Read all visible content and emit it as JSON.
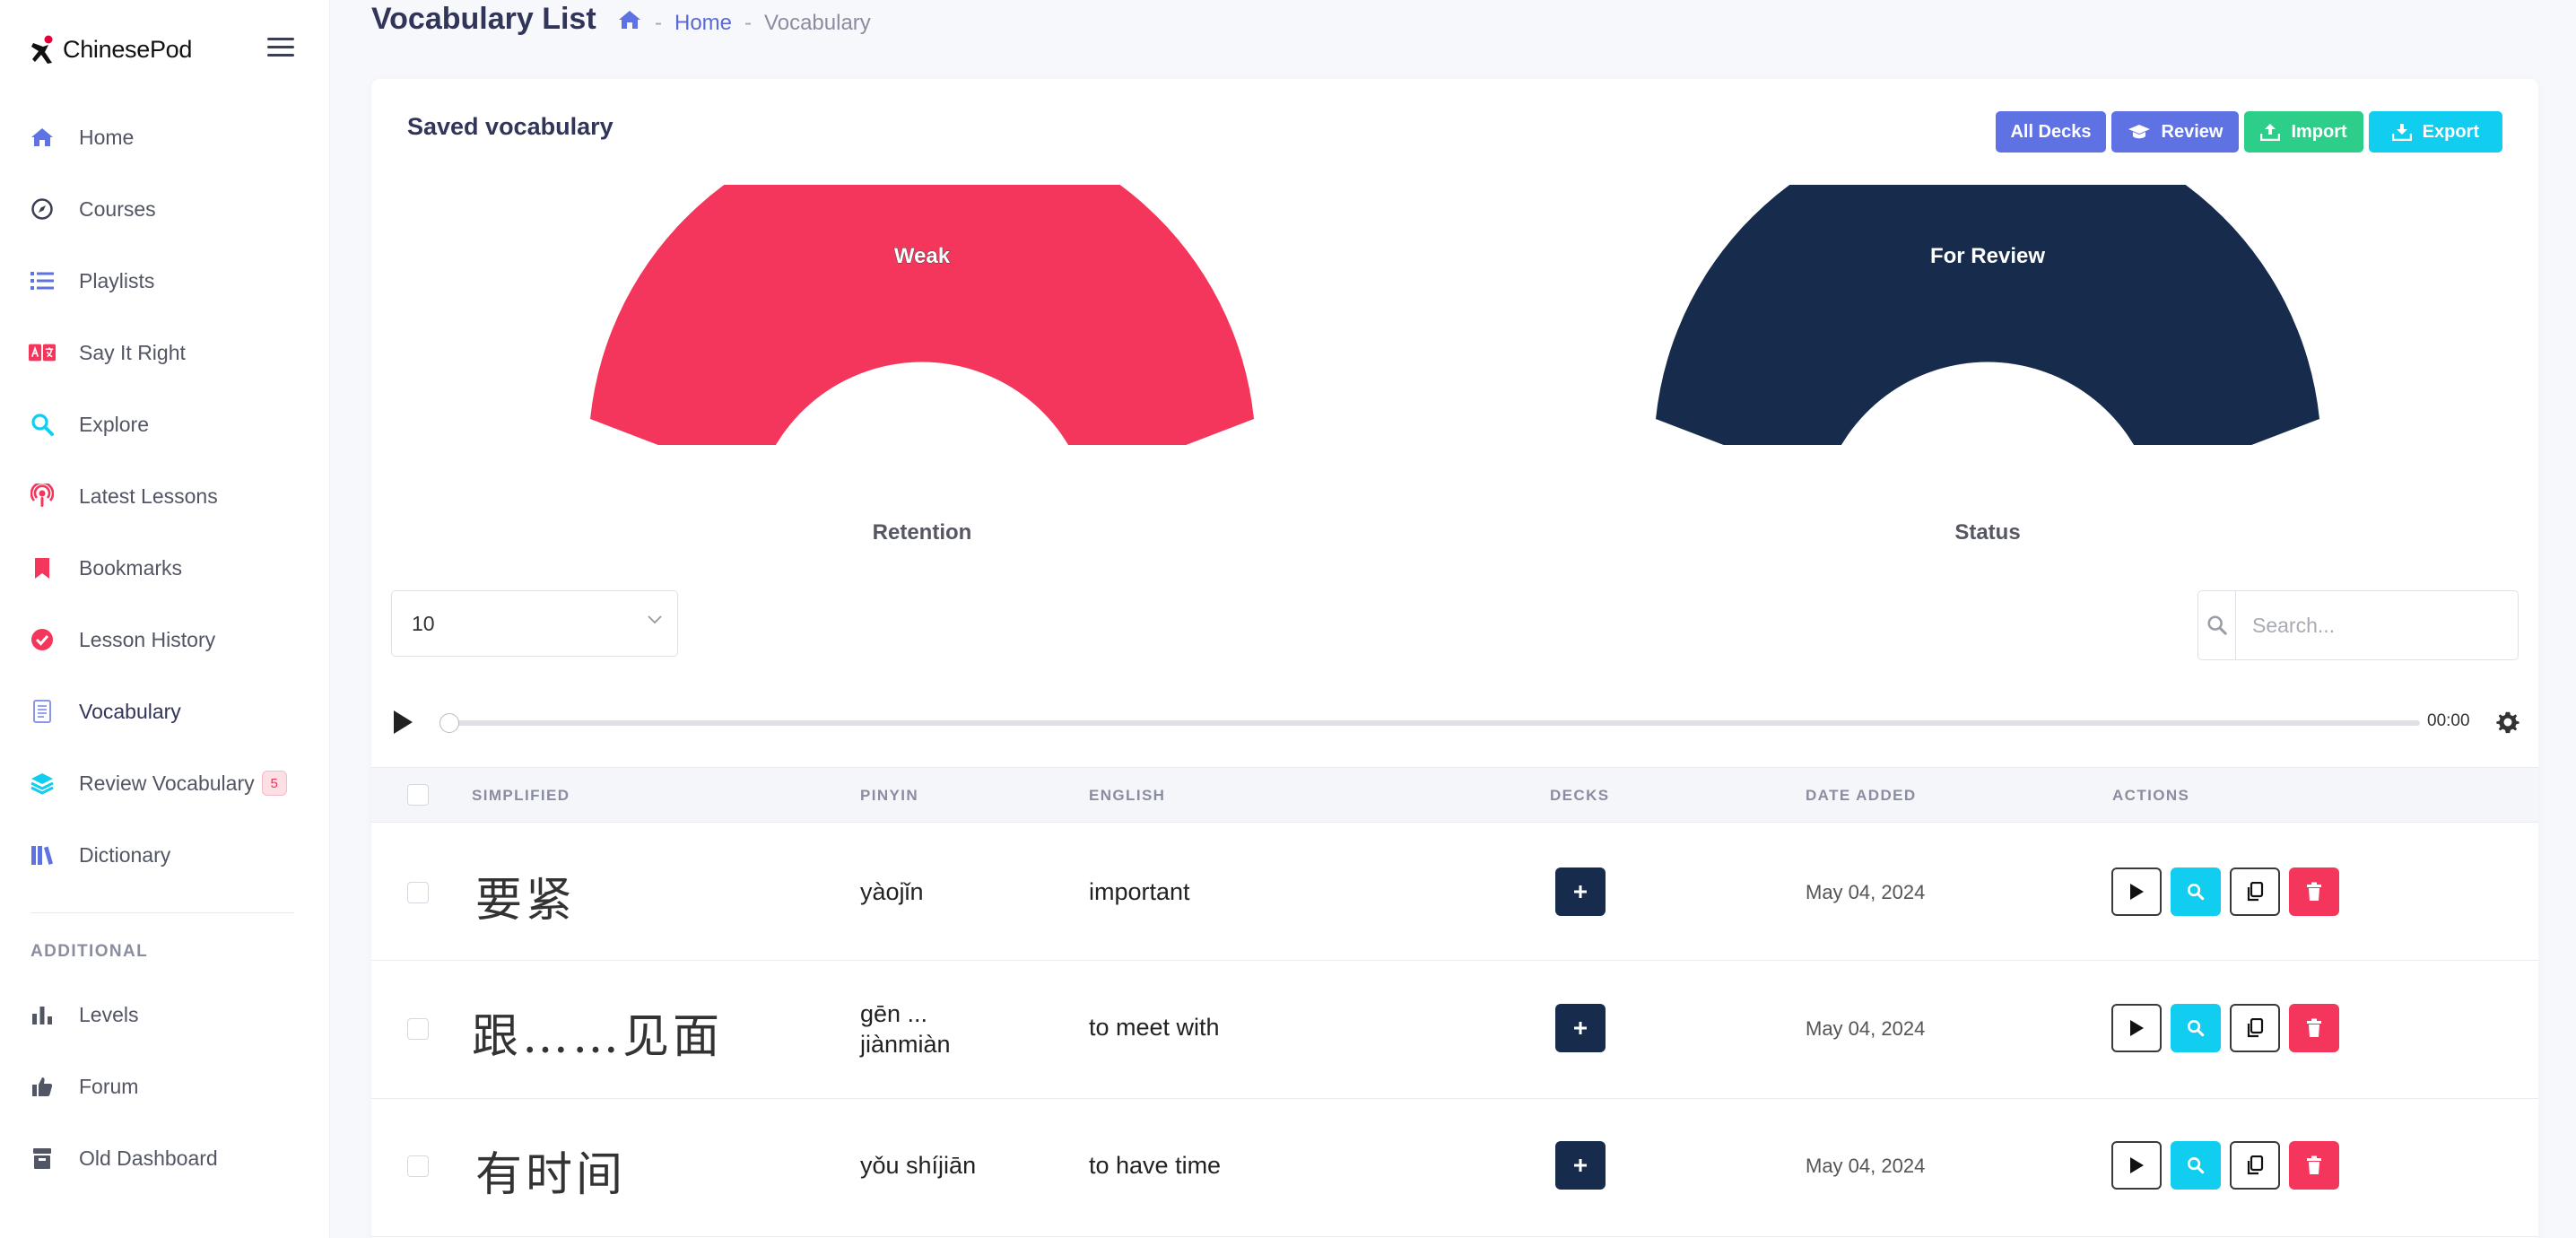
{
  "brand": {
    "name": "ChinesePod"
  },
  "sidebar": {
    "items": [
      {
        "label": "Home",
        "icon": "home-icon"
      },
      {
        "label": "Courses",
        "icon": "compass-icon"
      },
      {
        "label": "Playlists",
        "icon": "list-icon"
      },
      {
        "label": "Say It Right",
        "icon": "translate-icon"
      },
      {
        "label": "Explore",
        "icon": "search-icon"
      },
      {
        "label": "Latest Lessons",
        "icon": "podcast-icon"
      },
      {
        "label": "Bookmarks",
        "icon": "bookmark-icon"
      },
      {
        "label": "Lesson History",
        "icon": "check-circle-icon"
      },
      {
        "label": "Vocabulary",
        "icon": "notebook-icon"
      },
      {
        "label": "Review Vocabulary",
        "icon": "layers-icon",
        "badge": "5"
      },
      {
        "label": "Dictionary",
        "icon": "books-icon"
      }
    ],
    "additional_title": "ADDITIONAL",
    "additional_items": [
      {
        "label": "Levels",
        "icon": "bar-chart-icon"
      },
      {
        "label": "Forum",
        "icon": "thumbs-up-icon"
      },
      {
        "label": "Old Dashboard",
        "icon": "archive-icon"
      }
    ]
  },
  "header": {
    "title": "Vocabulary List",
    "breadcrumb": {
      "home": "Home",
      "separator": "-",
      "current": "Vocabulary"
    }
  },
  "card": {
    "title": "Saved vocabulary",
    "buttons": {
      "all_decks": "All Decks",
      "review": "Review",
      "import": "Import",
      "export": "Export"
    }
  },
  "gauges": [
    {
      "value_label": "Weak",
      "caption": "Retention",
      "color": "#f5365c"
    },
    {
      "value_label": "For Review",
      "caption": "Status",
      "color": "#172b4d"
    }
  ],
  "controls": {
    "page_size": "10",
    "search_placeholder": "Search...",
    "player_time": "00:00"
  },
  "table": {
    "headers": {
      "simplified": "SIMPLIFIED",
      "pinyin": "PINYIN",
      "english": "ENGLISH",
      "decks": "DECKS",
      "date_added": "DATE ADDED",
      "actions": "ACTIONS"
    },
    "rows": [
      {
        "simplified": "要紧",
        "pinyin": "yàojǐn",
        "english": "important",
        "date": "May 04, 2024"
      },
      {
        "simplified": "跟……见面",
        "pinyin": "gēn ... jiànmiàn",
        "english": "to meet with",
        "date": "May 04, 2024"
      },
      {
        "simplified": "有时间",
        "pinyin": "yǒu shíjiān",
        "english": "to have time",
        "date": "May 04, 2024"
      }
    ]
  },
  "colors": {
    "primary": "#5e72e4",
    "success": "#2dce89",
    "info": "#11cdef",
    "danger": "#f5365c",
    "dark": "#172b4d"
  }
}
